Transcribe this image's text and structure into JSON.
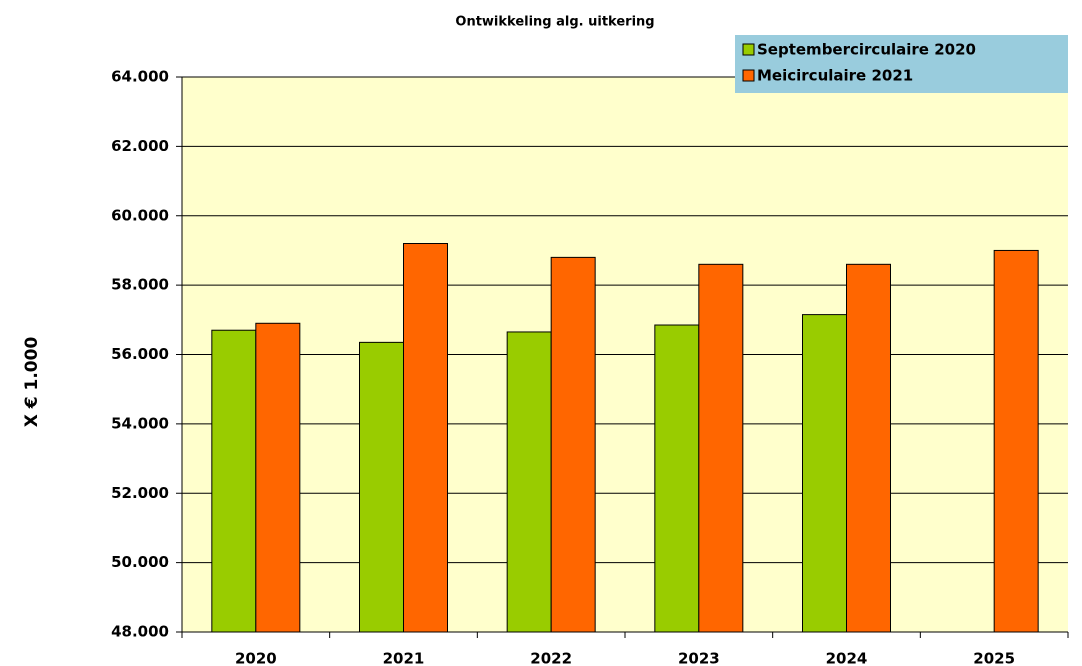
{
  "chart_data": {
    "type": "bar",
    "title": "Ontwikkeling alg. uitkering",
    "y_label": "X € 1.000",
    "categories": [
      "2020",
      "2021",
      "2022",
      "2023",
      "2024",
      "2025"
    ],
    "series": [
      {
        "name": "Septembercirculaire 2020",
        "color": "#99cc00",
        "values": [
          56700,
          56350,
          56650,
          56850,
          57150,
          null
        ]
      },
      {
        "name": "Meicirculaire 2021",
        "color": "#ff6600",
        "values": [
          56900,
          59200,
          58800,
          58600,
          58600,
          59000
        ]
      }
    ],
    "ylim": [
      48000,
      64000
    ],
    "yticks": [
      {
        "value": 48000,
        "label": "48.000"
      },
      {
        "value": 50000,
        "label": "50.000"
      },
      {
        "value": 52000,
        "label": "52.000"
      },
      {
        "value": 54000,
        "label": "54.000"
      },
      {
        "value": 56000,
        "label": "56.000"
      },
      {
        "value": 58000,
        "label": "58.000"
      },
      {
        "value": 60000,
        "label": "60.000"
      },
      {
        "value": 62000,
        "label": "62.000"
      },
      {
        "value": 64000,
        "label": "64.000"
      }
    ],
    "grid": true,
    "legend": "upper right",
    "plot_background": "#ffffcc",
    "legend_background": "#99ccdd"
  }
}
